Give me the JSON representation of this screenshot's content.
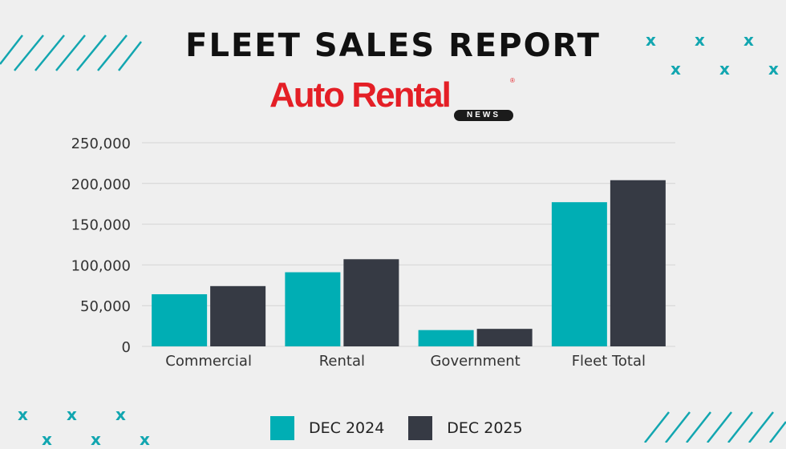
{
  "header": {
    "title": "FLEET SALES REPORT",
    "logo_text": "Auto Rental",
    "logo_sub": "NEWS"
  },
  "colors": {
    "background": "#efefef",
    "series_2024": "#00aeb4",
    "series_2025": "#363a44",
    "accent": "#12a6b0",
    "logo_red": "#e41f26"
  },
  "decorations": {
    "x_mark": "x"
  },
  "chart_data": {
    "type": "bar",
    "title": "",
    "xlabel": "",
    "ylabel": "",
    "categories": [
      "Commercial",
      "Rental",
      "Government",
      "Fleet Total"
    ],
    "series": [
      {
        "name": "DEC 2024",
        "values": [
          64000,
          91000,
          20000,
          177000
        ]
      },
      {
        "name": "DEC 2025",
        "values": [
          74000,
          107000,
          21500,
          204000
        ]
      }
    ],
    "ylim": [
      0,
      250000
    ],
    "yticks": [
      0,
      50000,
      100000,
      150000,
      200000,
      250000
    ],
    "ytick_labels": [
      "0",
      "50,000",
      "100,000",
      "150,000",
      "200,000",
      "250,000"
    ],
    "grid": true,
    "legend_position": "bottom"
  }
}
